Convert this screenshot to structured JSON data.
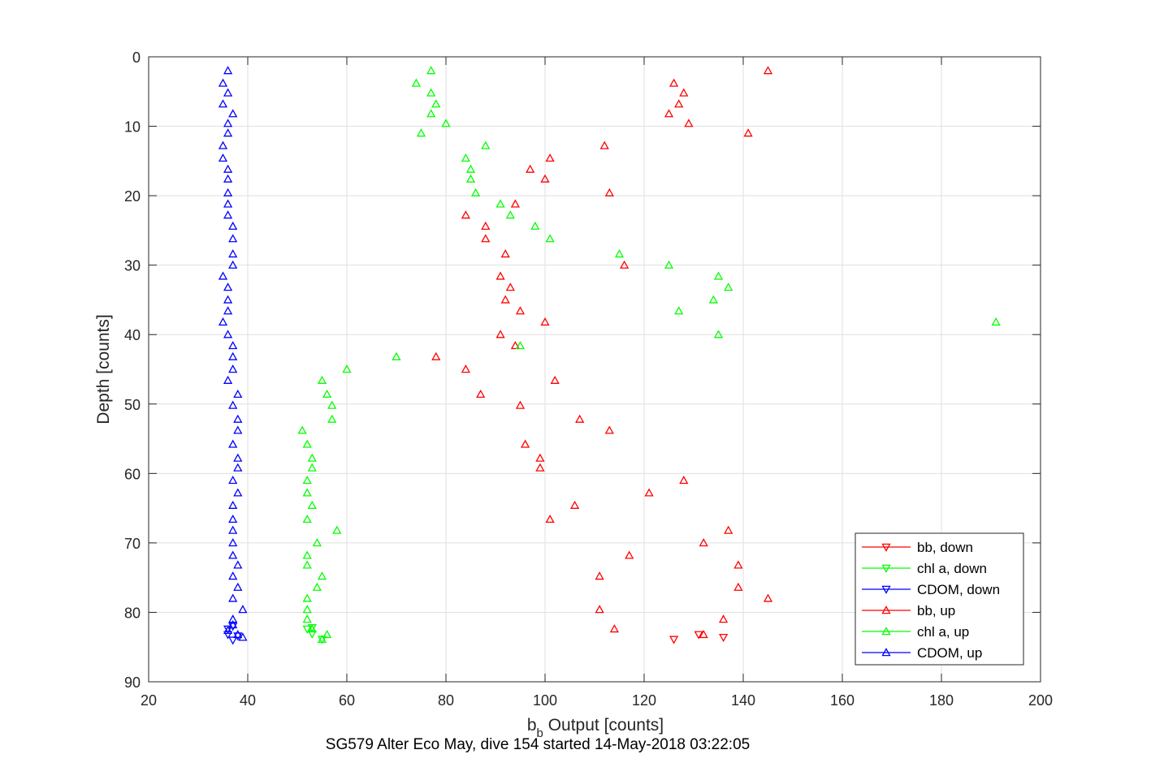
{
  "chart_data": {
    "type": "scatter",
    "xlabel_main": "b",
    "xlabel_sub": "b",
    "xlabel_rest": " Output [counts]",
    "ylabel": "Depth [counts]",
    "subtitle": "SG579 Alter Eco May, dive 154 started 14-May-2018 03:22:05",
    "xlim": [
      20,
      200
    ],
    "ylim": [
      0,
      90
    ],
    "y_reversed": true,
    "grid": true,
    "legend_position": "bottom-right",
    "xticks": [
      20,
      40,
      60,
      80,
      100,
      120,
      140,
      160,
      180,
      200
    ],
    "yticks": [
      0,
      10,
      20,
      30,
      40,
      50,
      60,
      70,
      80,
      90
    ],
    "series": [
      {
        "name": "bb, down",
        "color": "#ff0000",
        "marker": "triangle-down",
        "points": [
          [
            131,
            83.2
          ],
          [
            136,
            83.6
          ],
          [
            126,
            83.9
          ]
        ]
      },
      {
        "name": "chl a, down",
        "color": "#00ff00",
        "marker": "triangle-down",
        "points": [
          [
            52,
            82.4
          ],
          [
            53,
            82.2
          ],
          [
            53,
            83.1
          ],
          [
            55,
            83.9
          ]
        ]
      },
      {
        "name": "CDOM, down",
        "color": "#0000ff",
        "marker": "triangle-down",
        "points": [
          [
            36,
            82.4
          ],
          [
            37,
            82.0
          ],
          [
            36,
            83.2
          ],
          [
            38,
            83.4
          ],
          [
            37,
            84.0
          ]
        ]
      },
      {
        "name": "bb, up",
        "color": "#ff0000",
        "marker": "triangle-up",
        "points": [
          [
            145,
            2
          ],
          [
            126,
            3.8
          ],
          [
            128,
            5.2
          ],
          [
            127,
            6.8
          ],
          [
            125,
            8.2
          ],
          [
            129,
            9.6
          ],
          [
            141,
            11
          ],
          [
            112,
            12.8
          ],
          [
            101,
            14.6
          ],
          [
            97,
            16.2
          ],
          [
            100,
            17.6
          ],
          [
            113,
            19.6
          ],
          [
            94,
            21.2
          ],
          [
            84,
            22.8
          ],
          [
            88,
            24.4
          ],
          [
            88,
            26.2
          ],
          [
            92,
            28.4
          ],
          [
            116,
            30
          ],
          [
            91,
            31.6
          ],
          [
            93,
            33.2
          ],
          [
            92,
            35
          ],
          [
            95,
            36.6
          ],
          [
            100,
            38.2
          ],
          [
            91,
            40
          ],
          [
            94,
            41.6
          ],
          [
            78,
            43.2
          ],
          [
            84,
            45
          ],
          [
            102,
            46.6
          ],
          [
            87,
            48.6
          ],
          [
            95,
            50.2
          ],
          [
            107,
            52.2
          ],
          [
            113,
            53.8
          ],
          [
            96,
            55.8
          ],
          [
            99,
            57.8
          ],
          [
            99,
            59.2
          ],
          [
            128,
            61
          ],
          [
            121,
            62.8
          ],
          [
            106,
            64.6
          ],
          [
            101,
            66.6
          ],
          [
            137,
            68.2
          ],
          [
            132,
            70
          ],
          [
            117,
            71.8
          ],
          [
            139,
            73.2
          ],
          [
            111,
            74.8
          ],
          [
            139,
            76.4
          ],
          [
            145,
            78
          ],
          [
            111,
            79.6
          ],
          [
            136,
            81
          ],
          [
            114,
            82.4
          ],
          [
            132,
            83.2
          ]
        ]
      },
      {
        "name": "chl a, up",
        "color": "#00ff00",
        "marker": "triangle-up",
        "points": [
          [
            77,
            2
          ],
          [
            74,
            3.8
          ],
          [
            77,
            5.2
          ],
          [
            78,
            6.8
          ],
          [
            77,
            8.2
          ],
          [
            80,
            9.6
          ],
          [
            75,
            11
          ],
          [
            88,
            12.8
          ],
          [
            84,
            14.6
          ],
          [
            85,
            16.2
          ],
          [
            85,
            17.6
          ],
          [
            86,
            19.6
          ],
          [
            91,
            21.2
          ],
          [
            93,
            22.8
          ],
          [
            98,
            24.4
          ],
          [
            101,
            26.2
          ],
          [
            115,
            28.4
          ],
          [
            125,
            30
          ],
          [
            135,
            31.6
          ],
          [
            137,
            33.2
          ],
          [
            134,
            35
          ],
          [
            127,
            36.6
          ],
          [
            191,
            38.2
          ],
          [
            135,
            40
          ],
          [
            95,
            41.6
          ],
          [
            70,
            43.2
          ],
          [
            60,
            45
          ],
          [
            55,
            46.6
          ],
          [
            56,
            48.6
          ],
          [
            57,
            50.2
          ],
          [
            57,
            52.2
          ],
          [
            51,
            53.8
          ],
          [
            52,
            55.8
          ],
          [
            53,
            57.8
          ],
          [
            53,
            59.2
          ],
          [
            52,
            61
          ],
          [
            52,
            62.8
          ],
          [
            53,
            64.6
          ],
          [
            52,
            66.6
          ],
          [
            58,
            68.2
          ],
          [
            54,
            70
          ],
          [
            52,
            71.8
          ],
          [
            52,
            73.2
          ],
          [
            55,
            74.8
          ],
          [
            54,
            76.4
          ],
          [
            52,
            78
          ],
          [
            52,
            79.6
          ],
          [
            52,
            81
          ],
          [
            53,
            82.4
          ],
          [
            56,
            83.2
          ],
          [
            55,
            83.9
          ]
        ]
      },
      {
        "name": "CDOM, up",
        "color": "#0000ff",
        "marker": "triangle-up",
        "points": [
          [
            36,
            2
          ],
          [
            35,
            3.8
          ],
          [
            36,
            5.2
          ],
          [
            35,
            6.8
          ],
          [
            37,
            8.2
          ],
          [
            36,
            9.6
          ],
          [
            36,
            11
          ],
          [
            35,
            12.8
          ],
          [
            35,
            14.6
          ],
          [
            36,
            16.2
          ],
          [
            36,
            17.6
          ],
          [
            36,
            19.6
          ],
          [
            36,
            21.2
          ],
          [
            36,
            22.8
          ],
          [
            37,
            24.4
          ],
          [
            37,
            26.2
          ],
          [
            37,
            28.4
          ],
          [
            37,
            30
          ],
          [
            35,
            31.6
          ],
          [
            36,
            33.2
          ],
          [
            36,
            35
          ],
          [
            36,
            36.6
          ],
          [
            35,
            38.2
          ],
          [
            36,
            40
          ],
          [
            37,
            41.6
          ],
          [
            37,
            43.2
          ],
          [
            37,
            45
          ],
          [
            36,
            46.6
          ],
          [
            38,
            48.6
          ],
          [
            37,
            50.2
          ],
          [
            38,
            52.2
          ],
          [
            38,
            53.8
          ],
          [
            37,
            55.8
          ],
          [
            38,
            57.8
          ],
          [
            38,
            59.2
          ],
          [
            37,
            61
          ],
          [
            38,
            62.8
          ],
          [
            37,
            64.6
          ],
          [
            37,
            66.6
          ],
          [
            37,
            68.2
          ],
          [
            37,
            70
          ],
          [
            37,
            71.8
          ],
          [
            38,
            73.2
          ],
          [
            37,
            74.8
          ],
          [
            38,
            76.4
          ],
          [
            37,
            78
          ],
          [
            39,
            79.6
          ],
          [
            37,
            81
          ],
          [
            37,
            81.8
          ],
          [
            36,
            82.6
          ],
          [
            38,
            83.2
          ],
          [
            39,
            83.6
          ]
        ]
      }
    ]
  }
}
